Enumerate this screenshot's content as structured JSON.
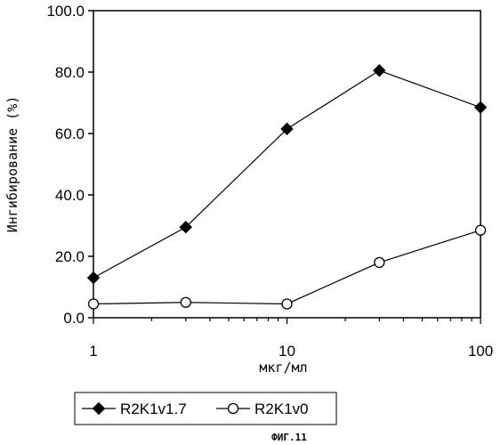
{
  "chart_data": {
    "type": "line",
    "xscale": "log",
    "xlim": [
      1,
      100
    ],
    "ylim": [
      0,
      100
    ],
    "xticks": [
      1,
      10,
      100
    ],
    "xtick_labels": [
      "1",
      "10",
      "100"
    ],
    "yticks": [
      0,
      20,
      40,
      60,
      80,
      100
    ],
    "ytick_labels": [
      "0.0",
      "20.0",
      "40.0",
      "60.0",
      "80.0",
      "100.0"
    ],
    "xlabel": "мкг/мл",
    "ylabel": "Ингибирование (%)",
    "grid": false,
    "legend_position": "bottom-left, below plot",
    "series": [
      {
        "name": "R2K1v1.7",
        "marker": "filled-diamond",
        "color": "#000000",
        "x": [
          1,
          3,
          10,
          30,
          100
        ],
        "y": [
          13,
          29.5,
          61.5,
          80.5,
          68.5
        ]
      },
      {
        "name": "R2K1v0",
        "marker": "open-circle",
        "color": "#000000",
        "x": [
          1,
          3,
          10,
          30,
          100
        ],
        "y": [
          4.5,
          5,
          4.5,
          18,
          28.5
        ]
      }
    ]
  },
  "caption": "ФИГ.11"
}
